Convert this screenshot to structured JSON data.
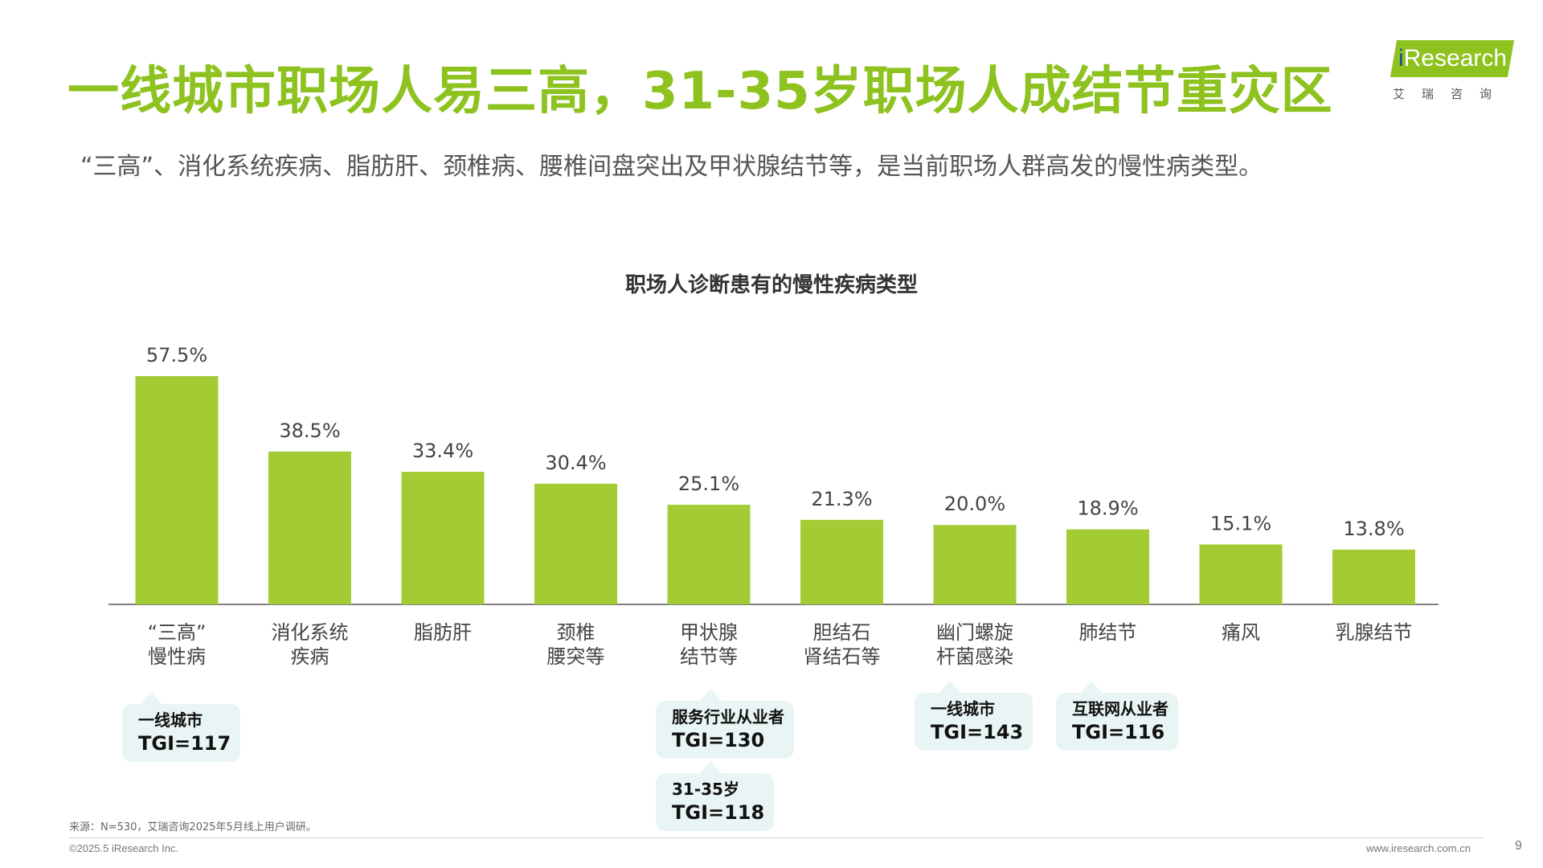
{
  "header": {
    "title": "一线城市职场人易三高，31-35岁职场人成结节重灾区",
    "subtitle": "“三高”、消化系统疾病、脂肪肝、颈椎病、腰椎间盘突出及甲状腺结节等，是当前职场人群高发的慢性病类型。"
  },
  "logo": {
    "prefix": "i",
    "main": "Research",
    "cn": "艾瑞咨询"
  },
  "chart_data": {
    "type": "bar",
    "title": "职场人诊断患有的慢性疾病类型",
    "categories": [
      "“三高”\n慢性病",
      "消化系统\n疾病",
      "脂肪肝",
      "颈椎\n腰突等",
      "甲状腺\n结节等",
      "胆结石\n肾结石等",
      "幽门螺旋\n杆菌感染",
      "肺结节",
      "痛风",
      "乳腺结节"
    ],
    "values": [
      57.5,
      38.5,
      33.4,
      30.4,
      25.1,
      21.3,
      20.0,
      18.9,
      15.1,
      13.8
    ],
    "value_labels": [
      "57.5%",
      "38.5%",
      "33.4%",
      "30.4%",
      "25.1%",
      "21.3%",
      "20.0%",
      "18.9%",
      "15.1%",
      "13.8%"
    ],
    "ylim": [
      0,
      57.5
    ],
    "bar_color": "#a3cc34",
    "annotations": [
      {
        "category_index": 0,
        "line1": "一线城市",
        "line2": "TGI=117"
      },
      {
        "category_index": 4,
        "line1": "服务行业从业者",
        "line2": "TGI=130"
      },
      {
        "category_index": 4,
        "line1": "31-35岁",
        "line2": "TGI=118"
      },
      {
        "category_index": 6,
        "line1": "一线城市",
        "line2": "TGI=143"
      },
      {
        "category_index": 7,
        "line1": "互联网从业者",
        "line2": "TGI=116"
      }
    ]
  },
  "footer": {
    "source": "来源：N=530，艾瑞咨询2025年5月线上用户调研。",
    "copyright": "©2025.5 iResearch Inc.",
    "website": "www.iresearch.com.cn",
    "page": "9"
  }
}
